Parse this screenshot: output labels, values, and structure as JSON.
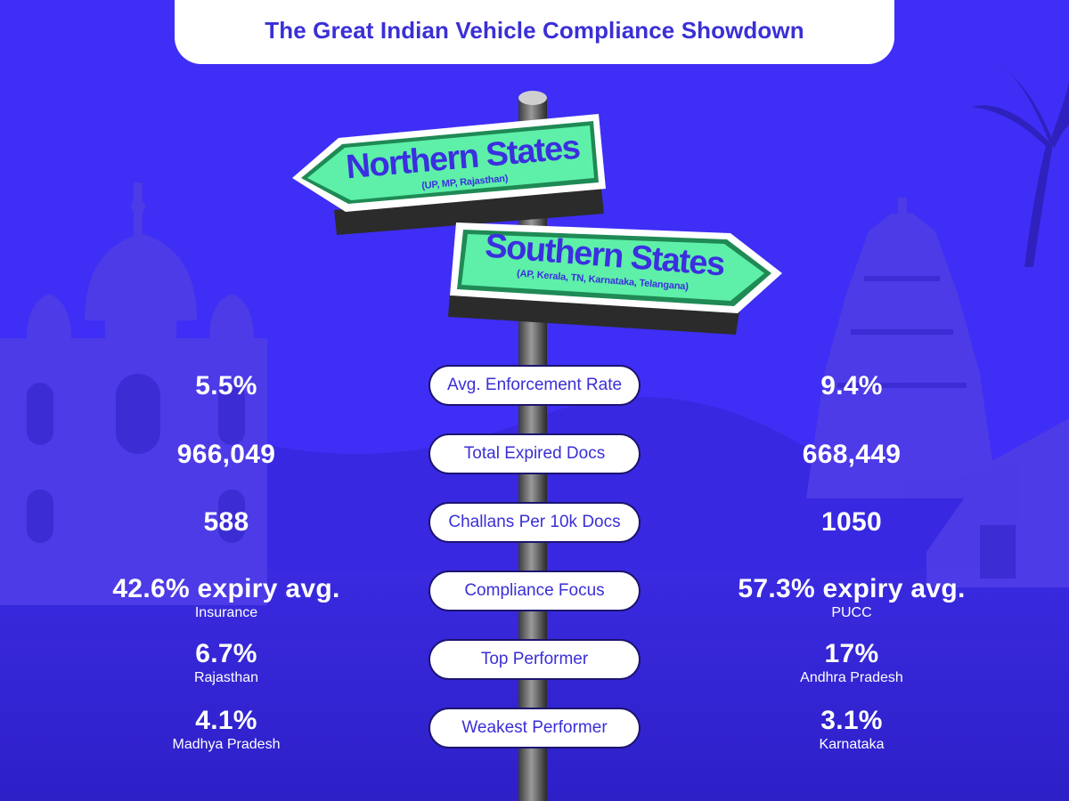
{
  "title": "The Great Indian Vehicle Compliance Showdown",
  "colors": {
    "background": "#3f2ef5",
    "title_text": "#3a2fd6",
    "sign_green": "#5ef0a8",
    "sign_border": "#1f8a55",
    "pill_border": "#1c1470",
    "stat_text": "#ffffff"
  },
  "signs": {
    "north": {
      "title": "Northern States",
      "subtitle": "(UP, MP, Rajasthan)"
    },
    "south": {
      "title": "Southern States",
      "subtitle": "(AP, Kerala, TN, Karnataka, Telangana)"
    }
  },
  "rows": [
    {
      "metric": "Avg. Enforcement Rate",
      "north": {
        "value": "5.5%",
        "sub": ""
      },
      "south": {
        "value": "9.4%",
        "sub": ""
      }
    },
    {
      "metric": "Total Expired Docs",
      "north": {
        "value": "966,049",
        "sub": ""
      },
      "south": {
        "value": "668,449",
        "sub": ""
      }
    },
    {
      "metric": "Challans Per 10k Docs",
      "north": {
        "value": "588",
        "sub": ""
      },
      "south": {
        "value": "1050",
        "sub": ""
      }
    },
    {
      "metric": "Compliance Focus",
      "north": {
        "value": "42.6% expiry avg.",
        "sub": "Insurance"
      },
      "south": {
        "value": "57.3% expiry avg.",
        "sub": "PUCC"
      }
    },
    {
      "metric": "Top Performer",
      "north": {
        "value": "6.7%",
        "sub": "Rajasthan"
      },
      "south": {
        "value": "17%",
        "sub": "Andhra Pradesh"
      }
    },
    {
      "metric": "Weakest Performer",
      "north": {
        "value": "4.1%",
        "sub": "Madhya Pradesh"
      },
      "south": {
        "value": "3.1%",
        "sub": "Karnataka"
      }
    }
  ],
  "icons": [
    "taj-mahal-silhouette",
    "temple-gopuram-silhouette",
    "palm-tree-silhouette",
    "signpost-pole"
  ]
}
